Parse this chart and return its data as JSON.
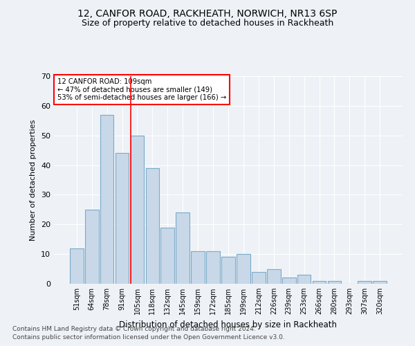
{
  "title": "12, CANFOR ROAD, RACKHEATH, NORWICH, NR13 6SP",
  "subtitle": "Size of property relative to detached houses in Rackheath",
  "xlabel": "Distribution of detached houses by size in Rackheath",
  "ylabel": "Number of detached properties",
  "categories": [
    "51sqm",
    "64sqm",
    "78sqm",
    "91sqm",
    "105sqm",
    "118sqm",
    "132sqm",
    "145sqm",
    "159sqm",
    "172sqm",
    "185sqm",
    "199sqm",
    "212sqm",
    "226sqm",
    "239sqm",
    "253sqm",
    "266sqm",
    "280sqm",
    "293sqm",
    "307sqm",
    "320sqm"
  ],
  "values": [
    12,
    25,
    57,
    44,
    50,
    39,
    19,
    24,
    11,
    11,
    9,
    10,
    4,
    5,
    2,
    3,
    1,
    1,
    0,
    1,
    1
  ],
  "bar_color": "#c8d8e8",
  "bar_edge_color": "#7aaac8",
  "annotation_text": "12 CANFOR ROAD: 109sqm\n← 47% of detached houses are smaller (149)\n53% of semi-detached houses are larger (166) →",
  "annotation_box_color": "white",
  "annotation_box_edge_color": "red",
  "vline_color": "red",
  "ylim": [
    0,
    70
  ],
  "yticks": [
    0,
    10,
    20,
    30,
    40,
    50,
    60,
    70
  ],
  "footer_line1": "Contains HM Land Registry data © Crown copyright and database right 2024.",
  "footer_line2": "Contains public sector information licensed under the Open Government Licence v3.0.",
  "background_color": "#eef2f7",
  "plot_bg_color": "#eef2f7",
  "grid_color": "white",
  "title_fontsize": 10,
  "subtitle_fontsize": 9,
  "footer_fontsize": 6.5
}
